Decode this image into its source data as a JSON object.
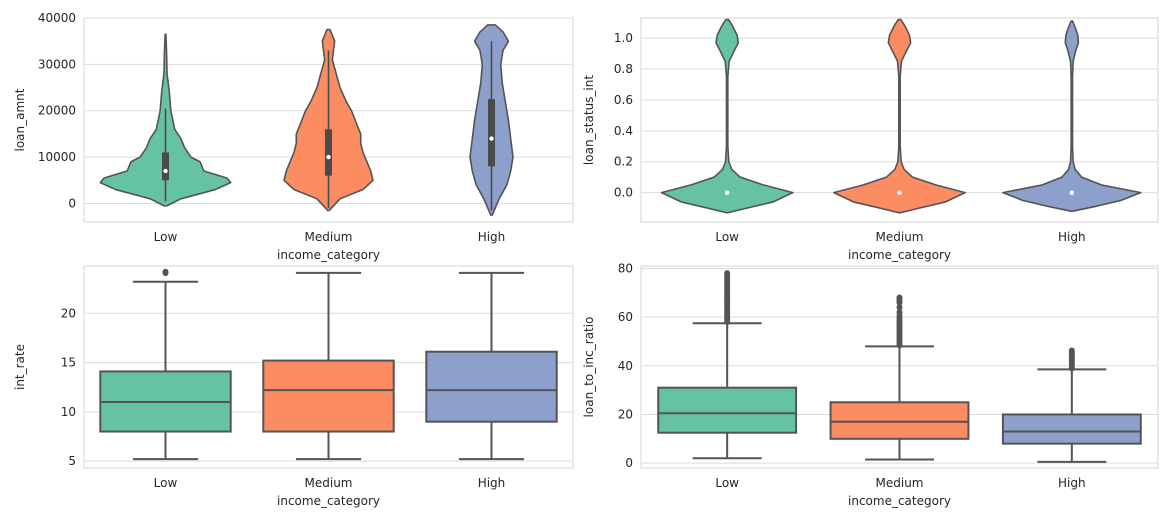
{
  "palette": [
    "#66c2a5",
    "#fc8d62",
    "#8da0cb"
  ],
  "edge_color": "#545454",
  "chart_data": [
    {
      "type": "violin",
      "xlabel": "income_category",
      "ylabel": "loan_amnt",
      "categories": [
        "Low",
        "Medium",
        "High"
      ],
      "ylim": [
        -4000,
        40000
      ],
      "yticks": [
        0,
        10000,
        20000,
        30000,
        40000
      ],
      "grid": true,
      "series": [
        {
          "category": "Low",
          "min": -500,
          "max": 36500,
          "q1": 5000,
          "median": 7000,
          "q3": 11000,
          "whisker_low": 500,
          "whisker_high": 20500,
          "density": [
            [
              -500,
              0.02
            ],
            [
              1000,
              0.2
            ],
            [
              3000,
              0.65
            ],
            [
              4500,
              0.85
            ],
            [
              5500,
              0.8
            ],
            [
              7000,
              0.5
            ],
            [
              9000,
              0.45
            ],
            [
              10000,
              0.33
            ],
            [
              12000,
              0.25
            ],
            [
              14000,
              0.2
            ],
            [
              16000,
              0.12
            ],
            [
              20000,
              0.07
            ],
            [
              24000,
              0.05
            ],
            [
              28000,
              0.02
            ],
            [
              32000,
              0.015
            ],
            [
              36500,
              0.005
            ]
          ]
        },
        {
          "category": "Medium",
          "min": -1500,
          "max": 37500,
          "q1": 6000,
          "median": 10000,
          "q3": 16000,
          "whisker_low": -1000,
          "whisker_high": 33000,
          "density": [
            [
              -1500,
              0.01
            ],
            [
              1000,
              0.15
            ],
            [
              3000,
              0.45
            ],
            [
              5000,
              0.58
            ],
            [
              7000,
              0.55
            ],
            [
              9000,
              0.5
            ],
            [
              11000,
              0.45
            ],
            [
              13000,
              0.42
            ],
            [
              15000,
              0.42
            ],
            [
              17000,
              0.37
            ],
            [
              20000,
              0.3
            ],
            [
              22000,
              0.23
            ],
            [
              25000,
              0.15
            ],
            [
              28000,
              0.1
            ],
            [
              31000,
              0.05
            ],
            [
              35000,
              0.08
            ],
            [
              37500,
              0.02
            ]
          ]
        },
        {
          "category": "High",
          "min": -2500,
          "max": 38500,
          "q1": 8000,
          "median": 14000,
          "q3": 22500,
          "whisker_low": -1500,
          "whisker_high": 35000,
          "density": [
            [
              -2500,
              0.01
            ],
            [
              1000,
              0.1
            ],
            [
              4000,
              0.2
            ],
            [
              7000,
              0.25
            ],
            [
              10000,
              0.28
            ],
            [
              14000,
              0.25
            ],
            [
              18000,
              0.22
            ],
            [
              22000,
              0.18
            ],
            [
              26000,
              0.14
            ],
            [
              30000,
              0.12
            ],
            [
              33000,
              0.15
            ],
            [
              35000,
              0.22
            ],
            [
              37000,
              0.15
            ],
            [
              38500,
              0.05
            ]
          ]
        }
      ]
    },
    {
      "type": "violin",
      "xlabel": "income_category",
      "ylabel": "loan_status_int",
      "categories": [
        "Low",
        "Medium",
        "High"
      ],
      "ylim": [
        -0.19,
        1.13
      ],
      "yticks": [
        0.0,
        0.2,
        0.4,
        0.6,
        0.8,
        1.0
      ],
      "ytick_labels": [
        "0.0",
        "0.2",
        "0.4",
        "0.6",
        "0.8",
        "1.0"
      ],
      "grid": true,
      "series": [
        {
          "category": "Low",
          "median": 0.0,
          "density": [
            [
              -0.13,
              0.01
            ],
            [
              -0.1,
              0.3
            ],
            [
              -0.06,
              0.7
            ],
            [
              0.0,
              1.0
            ],
            [
              0.05,
              0.55
            ],
            [
              0.1,
              0.2
            ],
            [
              0.15,
              0.07
            ],
            [
              0.2,
              0.025
            ],
            [
              0.3,
              0.01
            ],
            [
              0.5,
              0.01
            ],
            [
              0.75,
              0.01
            ],
            [
              0.85,
              0.03
            ],
            [
              0.92,
              0.11
            ],
            [
              0.97,
              0.17
            ],
            [
              1.02,
              0.15
            ],
            [
              1.08,
              0.08
            ],
            [
              1.12,
              0.02
            ]
          ]
        },
        {
          "category": "Medium",
          "median": 0.0,
          "density": [
            [
              -0.13,
              0.01
            ],
            [
              -0.1,
              0.3
            ],
            [
              -0.06,
              0.7
            ],
            [
              0.0,
              1.0
            ],
            [
              0.05,
              0.55
            ],
            [
              0.1,
              0.2
            ],
            [
              0.15,
              0.07
            ],
            [
              0.2,
              0.025
            ],
            [
              0.3,
              0.01
            ],
            [
              0.5,
              0.01
            ],
            [
              0.75,
              0.01
            ],
            [
              0.85,
              0.03
            ],
            [
              0.92,
              0.11
            ],
            [
              0.97,
              0.17
            ],
            [
              1.02,
              0.15
            ],
            [
              1.08,
              0.08
            ],
            [
              1.12,
              0.02
            ]
          ]
        },
        {
          "category": "High",
          "median": 0.0,
          "density": [
            [
              -0.12,
              0.01
            ],
            [
              -0.09,
              0.35
            ],
            [
              -0.05,
              0.75
            ],
            [
              0.0,
              1.05
            ],
            [
              0.05,
              0.45
            ],
            [
              0.1,
              0.15
            ],
            [
              0.15,
              0.05
            ],
            [
              0.2,
              0.02
            ],
            [
              0.3,
              0.01
            ],
            [
              0.5,
              0.01
            ],
            [
              0.75,
              0.01
            ],
            [
              0.85,
              0.02
            ],
            [
              0.92,
              0.06
            ],
            [
              0.97,
              0.1
            ],
            [
              1.02,
              0.09
            ],
            [
              1.07,
              0.05
            ],
            [
              1.11,
              0.01
            ]
          ]
        }
      ]
    },
    {
      "type": "box",
      "xlabel": "income_category",
      "ylabel": "int_rate",
      "categories": [
        "Low",
        "Medium",
        "High"
      ],
      "ylim": [
        4.3,
        24.8
      ],
      "yticks": [
        5,
        10,
        15,
        20
      ],
      "grid": true,
      "series": [
        {
          "category": "Low",
          "whisker_low": 5.2,
          "q1": 8.0,
          "median": 11.0,
          "q3": 14.1,
          "whisker_high": 23.2,
          "outliers": [
            24.1,
            24.2
          ]
        },
        {
          "category": "Medium",
          "whisker_low": 5.2,
          "q1": 8.0,
          "median": 12.2,
          "q3": 15.2,
          "whisker_high": 24.1,
          "outliers": []
        },
        {
          "category": "High",
          "whisker_low": 5.2,
          "q1": 9.0,
          "median": 12.2,
          "q3": 16.1,
          "whisker_high": 24.1,
          "outliers": []
        }
      ]
    },
    {
      "type": "box",
      "xlabel": "income_category",
      "ylabel": "loan_to_inc_ratio",
      "categories": [
        "Low",
        "Medium",
        "High"
      ],
      "ylim": [
        -2,
        81
      ],
      "yticks": [
        0,
        20,
        40,
        60,
        80
      ],
      "grid": true,
      "series": [
        {
          "category": "Low",
          "whisker_low": 2,
          "q1": 12.5,
          "median": 20.5,
          "q3": 31,
          "whisker_high": 57.5,
          "outliers": [
            58,
            59,
            60,
            61,
            62,
            63,
            64,
            65,
            66,
            67,
            68,
            69,
            70,
            71,
            72,
            73,
            74,
            75,
            76,
            77,
            78
          ]
        },
        {
          "category": "Medium",
          "whisker_low": 1.5,
          "q1": 10,
          "median": 17,
          "q3": 25,
          "whisker_high": 48,
          "outliers": [
            48.5,
            49.5,
            50.5,
            51.5,
            52.5,
            53.5,
            54.5,
            55.5,
            56.5,
            57.5,
            58.5,
            59.5,
            60.5,
            62,
            64,
            66,
            67,
            68
          ]
        },
        {
          "category": "High",
          "whisker_low": 0.5,
          "q1": 8,
          "median": 13,
          "q3": 20,
          "whisker_high": 38.5,
          "outliers": [
            39,
            39.8,
            40.6,
            41.4,
            42.2,
            43,
            43.8,
            44.6,
            45.4,
            46.2
          ]
        }
      ]
    }
  ]
}
